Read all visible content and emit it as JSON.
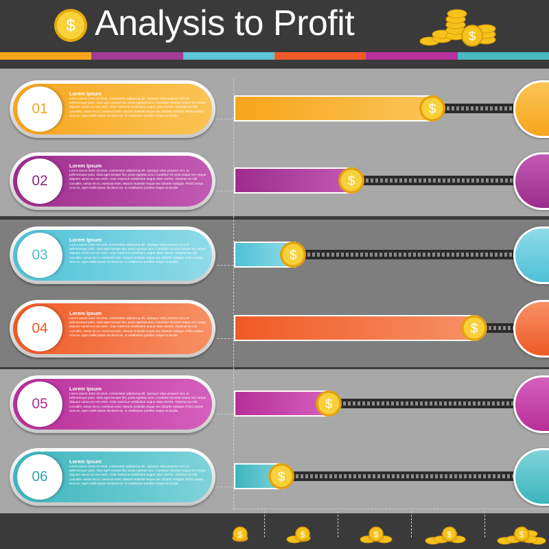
{
  "header": {
    "title": "Analysis to Profit",
    "coin_icon": "dollar-coin-icon",
    "coin_stack_icon": "coin-stack-icon",
    "stripe_colors": [
      "#f7a51c",
      "#a23b93",
      "#5cc5d8",
      "#f05a28",
      "#b8309a",
      "#4ab8c0"
    ]
  },
  "colors": {
    "bg_dark": "#3a3a3a",
    "band_light": "#a8a8a8",
    "band_dark": "#7e7e7e",
    "coin": "#f5c21b"
  },
  "rows": [
    {
      "num": "01",
      "heading": "Lorem Ipsum",
      "color": "#f7a51c",
      "color_light": "#fbc456",
      "num_color": "#f7a51c",
      "progress": 0.72,
      "body": "Lorem ipsum dolor sit amet, consectetur adipiscing elit. Quisque vitae posuere orci, et pellentesque justo. Duis eget semper leo, porta egestas arcu. Curabitur sit amet neque nec neque aliquam varius eu non enim. Cras maximus vestibulum augue vitae viverra. Vivamus eu nisi convallis, varius leo in, euismod enim. Mauris molestie neque nec lobortis volutpat. Proin cursus urna ex, eget mollis ipsum tincidunt eu. In vestibulum porttitor neque at iaculis."
    },
    {
      "num": "02",
      "heading": "Lorem Ipsum",
      "color": "#9c2c8c",
      "color_light": "#c25ab3",
      "num_color": "#8a2a7e",
      "progress": 0.43,
      "body": "Lorem ipsum dolor sit amet, consectetur adipiscing elit. Quisque vitae posuere orci, et pellentesque justo. Duis eget semper leo, porta egestas arcu. Curabitur sit amet neque nec neque aliquam varius eu non enim. Cras maximus vestibulum augue vitae viverra. Vivamus eu nisi convallis, varius leo in, euismod enim. Mauris molestie neque nec lobortis volutpat. Proin cursus urna ex, eget mollis ipsum tincidunt eu. In vestibulum porttitor neque at iaculis."
    },
    {
      "num": "03",
      "heading": "Lorem Ipsum",
      "color": "#4fc1d6",
      "color_light": "#8fdbe8",
      "num_color": "#4fb8cf",
      "progress": 0.22,
      "body": "Lorem ipsum dolor sit amet, consectetur adipiscing elit. Quisque vitae posuere orci, et pellentesque justo. Duis eget semper leo, porta egestas arcu. Curabitur sit amet neque nec neque aliquam varius eu non enim. Cras maximus vestibulum augue vitae viverra. Vivamus eu nisi convallis, varius leo in, euismod enim. Mauris molestie neque nec lobortis volutpat. Proin cursus urna ex, eget mollis ipsum tincidunt eu. In vestibulum porttitor neque at iaculis."
    },
    {
      "num": "04",
      "heading": "Lorem Ipsum",
      "color": "#ef5a26",
      "color_light": "#f79064",
      "num_color": "#ef5a26",
      "progress": 0.87,
      "body": "Lorem ipsum dolor sit amet, consectetur adipiscing elit. Quisque vitae posuere orci, et pellentesque justo. Duis eget semper leo, porta egestas arcu. Curabitur sit amet neque nec neque aliquam varius eu non enim. Cras maximus vestibulum augue vitae viverra. Vivamus eu nisi convallis, varius leo in, euismod enim. Mauris molestie neque nec lobortis volutpat. Proin cursus urna ex, eget mollis ipsum tincidunt eu. In vestibulum porttitor neque at iaculis."
    },
    {
      "num": "05",
      "heading": "Lorem Ipsum",
      "color": "#b72f98",
      "color_light": "#d560bd",
      "num_color": "#b02d93",
      "progress": 0.35,
      "body": "Lorem ipsum dolor sit amet, consectetur adipiscing elit. Quisque vitae posuere orci, et pellentesque justo. Duis eget semper leo, porta egestas arcu. Curabitur sit amet neque nec neque aliquam varius eu non enim. Cras maximus vestibulum augue vitae viverra. Vivamus eu nisi convallis, varius leo in, euismod enim. Mauris molestie neque nec lobortis volutpat. Proin cursus urna ex, eget mollis ipsum tincidunt eu. In vestibulum porttitor neque at iaculis."
    },
    {
      "num": "06",
      "heading": "Lorem Ipsum",
      "color": "#3cb5bd",
      "color_light": "#7fd3d9",
      "num_color": "#2fa3ac",
      "progress": 0.18,
      "body": "Lorem ipsum dolor sit amet, consectetur adipiscing elit. Quisque vitae posuere orci, et pellentesque justo. Duis eget semper leo, porta egestas arcu. Curabitur sit amet neque nec neque aliquam varius eu non enim. Cras maximus vestibulum augue vitae viverra. Vivamus eu nisi convallis, varius leo in, euismod enim. Mauris molestie neque nec lobortis volutpat. Proin cursus urna ex, eget mollis ipsum tincidunt eu. In vestibulum porttitor neque at iaculis."
    }
  ],
  "footer": {
    "coin_levels": [
      1,
      2,
      3,
      5,
      7
    ],
    "coin_icon": "coin-pile-icon"
  }
}
